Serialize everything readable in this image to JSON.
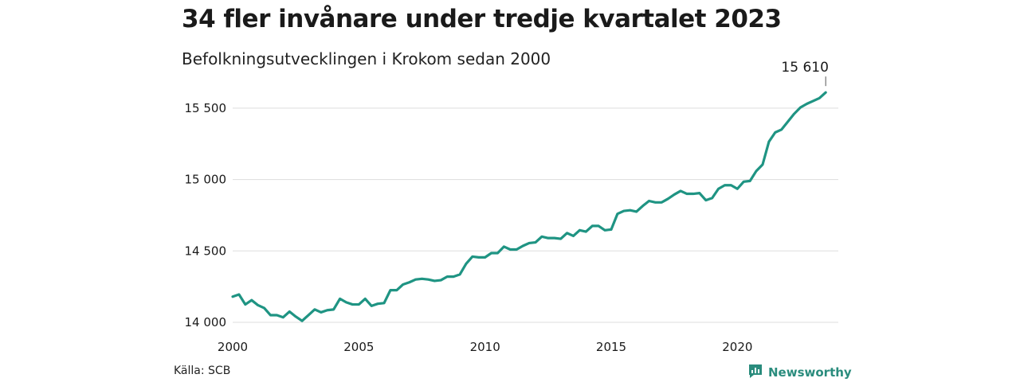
{
  "title": "34 fler invånare under tredje kvartalet 2023",
  "subtitle": "Befolkningsutvecklingen i Krokom sedan 2000",
  "source": "Källa: SCB",
  "brand": {
    "name": "Newsworthy",
    "icon": "newsworthy-logo-icon",
    "color": "#2a8c7d"
  },
  "colors": {
    "line": "#1f9483",
    "grid": "#dddddd"
  },
  "chart_data": {
    "type": "line",
    "title": "34 fler invånare under tredje kvartalet 2023",
    "subtitle": "Befolkningsutvecklingen i Krokom sedan 2000",
    "xlabel": "",
    "ylabel": "",
    "xlim": [
      2000,
      2024
    ],
    "ylim": [
      14000,
      15700
    ],
    "grid": true,
    "x_ticks": [
      2000,
      2005,
      2010,
      2015,
      2020
    ],
    "x_tick_labels": [
      "2000",
      "2005",
      "2010",
      "2015",
      "2020"
    ],
    "y_ticks": [
      14000,
      14500,
      15000,
      15500
    ],
    "y_tick_labels": [
      "14 000",
      "14 500",
      "15 000",
      "15 500"
    ],
    "end_label": "15 610",
    "x": [
      2000.0,
      2000.25,
      2000.5,
      2000.75,
      2001.0,
      2001.25,
      2001.5,
      2001.75,
      2002.0,
      2002.25,
      2002.5,
      2002.75,
      2003.0,
      2003.25,
      2003.5,
      2003.75,
      2004.0,
      2004.25,
      2004.5,
      2004.75,
      2005.0,
      2005.25,
      2005.5,
      2005.75,
      2006.0,
      2006.25,
      2006.5,
      2006.75,
      2007.0,
      2007.25,
      2007.5,
      2007.75,
      2008.0,
      2008.25,
      2008.5,
      2008.75,
      2009.0,
      2009.25,
      2009.5,
      2009.75,
      2010.0,
      2010.25,
      2010.5,
      2010.75,
      2011.0,
      2011.25,
      2011.5,
      2011.75,
      2012.0,
      2012.25,
      2012.5,
      2012.75,
      2013.0,
      2013.25,
      2013.5,
      2013.75,
      2014.0,
      2014.25,
      2014.5,
      2014.75,
      2015.0,
      2015.25,
      2015.5,
      2015.75,
      2016.0,
      2016.25,
      2016.5,
      2016.75,
      2017.0,
      2017.25,
      2017.5,
      2017.75,
      2018.0,
      2018.25,
      2018.5,
      2018.75,
      2019.0,
      2019.25,
      2019.5,
      2019.75,
      2020.0,
      2020.25,
      2020.5,
      2020.75,
      2021.0,
      2021.25,
      2021.5,
      2021.75,
      2022.0,
      2022.25,
      2022.5,
      2022.75,
      2023.0,
      2023.25,
      2023.5
    ],
    "series": [
      {
        "values": [
          14180,
          14195,
          14125,
          14155,
          14120,
          14100,
          14050,
          14050,
          14035,
          14075,
          14040,
          14010,
          14050,
          14090,
          14070,
          14085,
          14090,
          14165,
          14140,
          14125,
          14125,
          14165,
          14115,
          14130,
          14135,
          14225,
          14225,
          14265,
          14280,
          14300,
          14305,
          14300,
          14290,
          14295,
          14320,
          14320,
          14335,
          14410,
          14460,
          14455,
          14455,
          14485,
          14485,
          14530,
          14510,
          14510,
          14535,
          14555,
          14560,
          14600,
          14590,
          14590,
          14585,
          14625,
          14605,
          14645,
          14635,
          14675,
          14675,
          14645,
          14650,
          14760,
          14780,
          14785,
          14775,
          14815,
          14850,
          14840,
          14840,
          14865,
          14895,
          14920,
          14900,
          14900,
          14905,
          14855,
          14870,
          14935,
          14960,
          14960,
          14935,
          14985,
          14990,
          15060,
          15105,
          15265,
          15330,
          15350,
          15405,
          15460,
          15505,
          15530,
          15550,
          15570,
          15610
        ]
      }
    ]
  }
}
